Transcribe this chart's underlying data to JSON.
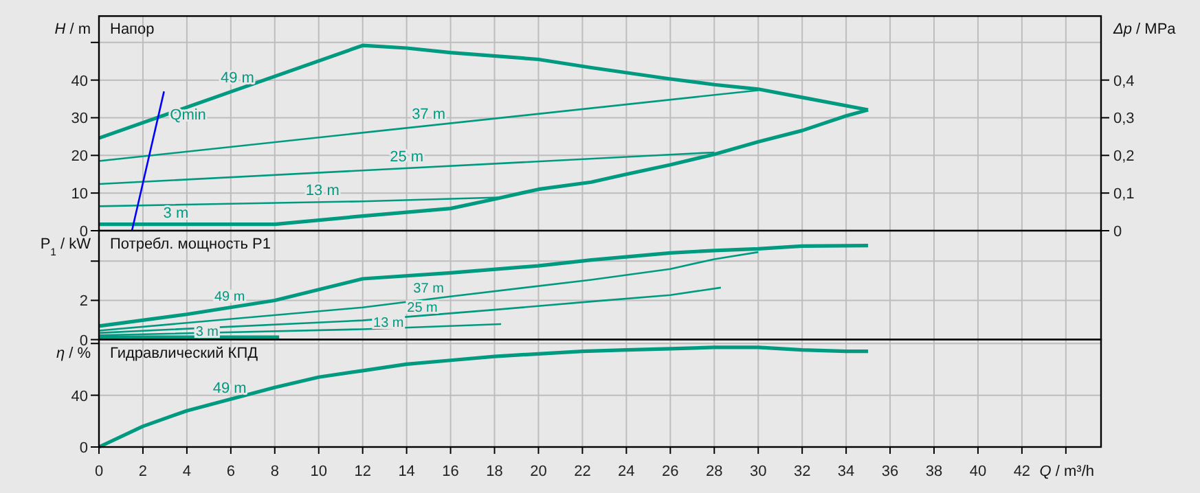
{
  "chart_data": [
    {
      "type": "line",
      "title": "Напор",
      "ylabel": "H / m",
      "y2label": "Δp / MPa",
      "xlim": [
        0,
        45.6
      ],
      "xticks": [
        0,
        2,
        4,
        6,
        8,
        10,
        12,
        14,
        16,
        18,
        20,
        22,
        24,
        26,
        28,
        30,
        32,
        34,
        36,
        38,
        40,
        42,
        44
      ],
      "ylim": [
        0,
        57
      ],
      "yticks": [
        0,
        10,
        20,
        30,
        40,
        {
          "value": 50,
          "label": null
        }
      ],
      "y2lim": [
        0,
        0.57
      ],
      "y2ticks": [
        0,
        {
          "value": 0.1,
          "label": "0,1"
        },
        {
          "value": 0.2,
          "label": "0,2"
        },
        {
          "value": 0.3,
          "label": "0,3"
        },
        {
          "value": 0.4,
          "label": "0,4"
        }
      ],
      "grid": true,
      "legend": false,
      "tick_labels": "y",
      "series": [
        {
          "name": "49 m",
          "color": "#009a80",
          "x": [
            0,
            6,
            12,
            14,
            16,
            20,
            22.4,
            26,
            28,
            30,
            32,
            35
          ],
          "values": [
            24.6,
            36.9,
            49.2,
            48.5,
            47.3,
            45.5,
            43.3,
            40.3,
            38.8,
            37.6,
            35.4,
            32.1
          ]
        },
        {
          "name": "37 m",
          "color": "#009a80",
          "x": [
            0,
            30
          ],
          "values": [
            18.5,
            37.3
          ]
        },
        {
          "name": "25 m",
          "color": "#009a80",
          "x": [
            0,
            28
          ],
          "values": [
            12.4,
            20.8
          ]
        },
        {
          "name": "13 m",
          "color": "#009a80",
          "x": [
            0,
            12,
            18.5
          ],
          "values": [
            6.5,
            7.8,
            8.9
          ]
        },
        {
          "name": "3 m",
          "color": "#009a80",
          "x": [
            0,
            8,
            12,
            16,
            18,
            20,
            22.4,
            24,
            26,
            28,
            30,
            32,
            34,
            35
          ],
          "values": [
            1.7,
            1.7,
            3.9,
            5.9,
            8.4,
            11,
            12.9,
            15,
            17.5,
            20.3,
            23.6,
            26.6,
            30.5,
            32.1
          ]
        },
        {
          "name": "Qmin",
          "color": "#0000ff",
          "x": [
            1.5,
            2.96
          ],
          "values": [
            0,
            37
          ]
        }
      ]
    },
    {
      "type": "line",
      "title": "Потребл. мощность P1",
      "ylabel": "P$_{1}$ / kW",
      "xlim": [
        0,
        45.6
      ],
      "xticks": [
        0,
        2,
        4,
        6,
        8,
        10,
        12,
        14,
        16,
        18,
        20,
        22,
        24,
        26,
        28,
        30,
        32,
        34,
        36,
        38,
        40,
        42,
        44
      ],
      "ylim": [
        0,
        5.55
      ],
      "yticks": [
        0,
        2,
        {
          "value": 4,
          "label": null
        }
      ],
      "grid": true,
      "legend": false,
      "tick_labels": "y",
      "series": [
        {
          "name": "49 m",
          "color": "#009a80",
          "x": [
            0,
            4,
            8,
            12,
            16,
            20,
            22.4,
            26,
            28,
            30,
            32,
            35
          ],
          "values": [
            0.69,
            1.29,
            2.0,
            3.1,
            3.4,
            3.76,
            4.06,
            4.42,
            4.54,
            4.63,
            4.77,
            4.79
          ]
        },
        {
          "name": "37 m",
          "color": "#009a80",
          "x": [
            0,
            12,
            16,
            22.4,
            26,
            28,
            30
          ],
          "values": [
            0.46,
            1.64,
            2.2,
            3.05,
            3.6,
            4.1,
            4.46
          ]
        },
        {
          "name": "25 m",
          "color": "#009a80",
          "x": [
            0,
            12,
            18,
            22.4,
            26,
            28.3
          ],
          "values": [
            0.34,
            0.98,
            1.52,
            1.94,
            2.27,
            2.65
          ]
        },
        {
          "name": "13 m",
          "color": "#009a80",
          "x": [
            0,
            12,
            18.3
          ],
          "values": [
            0.22,
            0.53,
            0.79
          ]
        },
        {
          "name": "3 m",
          "color": "#009a80",
          "x": [
            0,
            8.2
          ],
          "values": [
            0.12,
            0.12
          ]
        }
      ]
    },
    {
      "type": "line",
      "title": "Гидравлический КПД",
      "ylabel": "η / %",
      "xlabel": "Q / m³/h",
      "xlim": [
        0,
        45.6
      ],
      "xticks": [
        0,
        2,
        4,
        6,
        8,
        10,
        12,
        14,
        16,
        18,
        20,
        22,
        24,
        26,
        28,
        30,
        32,
        34,
        36,
        38,
        40,
        42,
        {
          "value": 44,
          "label": null
        }
      ],
      "ylim": [
        0,
        83
      ],
      "yticks": [
        0,
        40,
        {
          "value": 80,
          "label": null
        }
      ],
      "grid": true,
      "legend": false,
      "series": [
        {
          "name": "49 m",
          "color": "#009a80",
          "x": [
            0,
            2,
            4,
            6,
            8,
            10,
            12,
            14,
            16,
            18,
            20,
            22,
            24,
            26,
            28,
            30,
            32,
            34,
            35
          ],
          "values": [
            0,
            16,
            28,
            37,
            46,
            54,
            59,
            64,
            67,
            70,
            72,
            74,
            75,
            76,
            77,
            77,
            75,
            74,
            74
          ]
        }
      ]
    }
  ]
}
